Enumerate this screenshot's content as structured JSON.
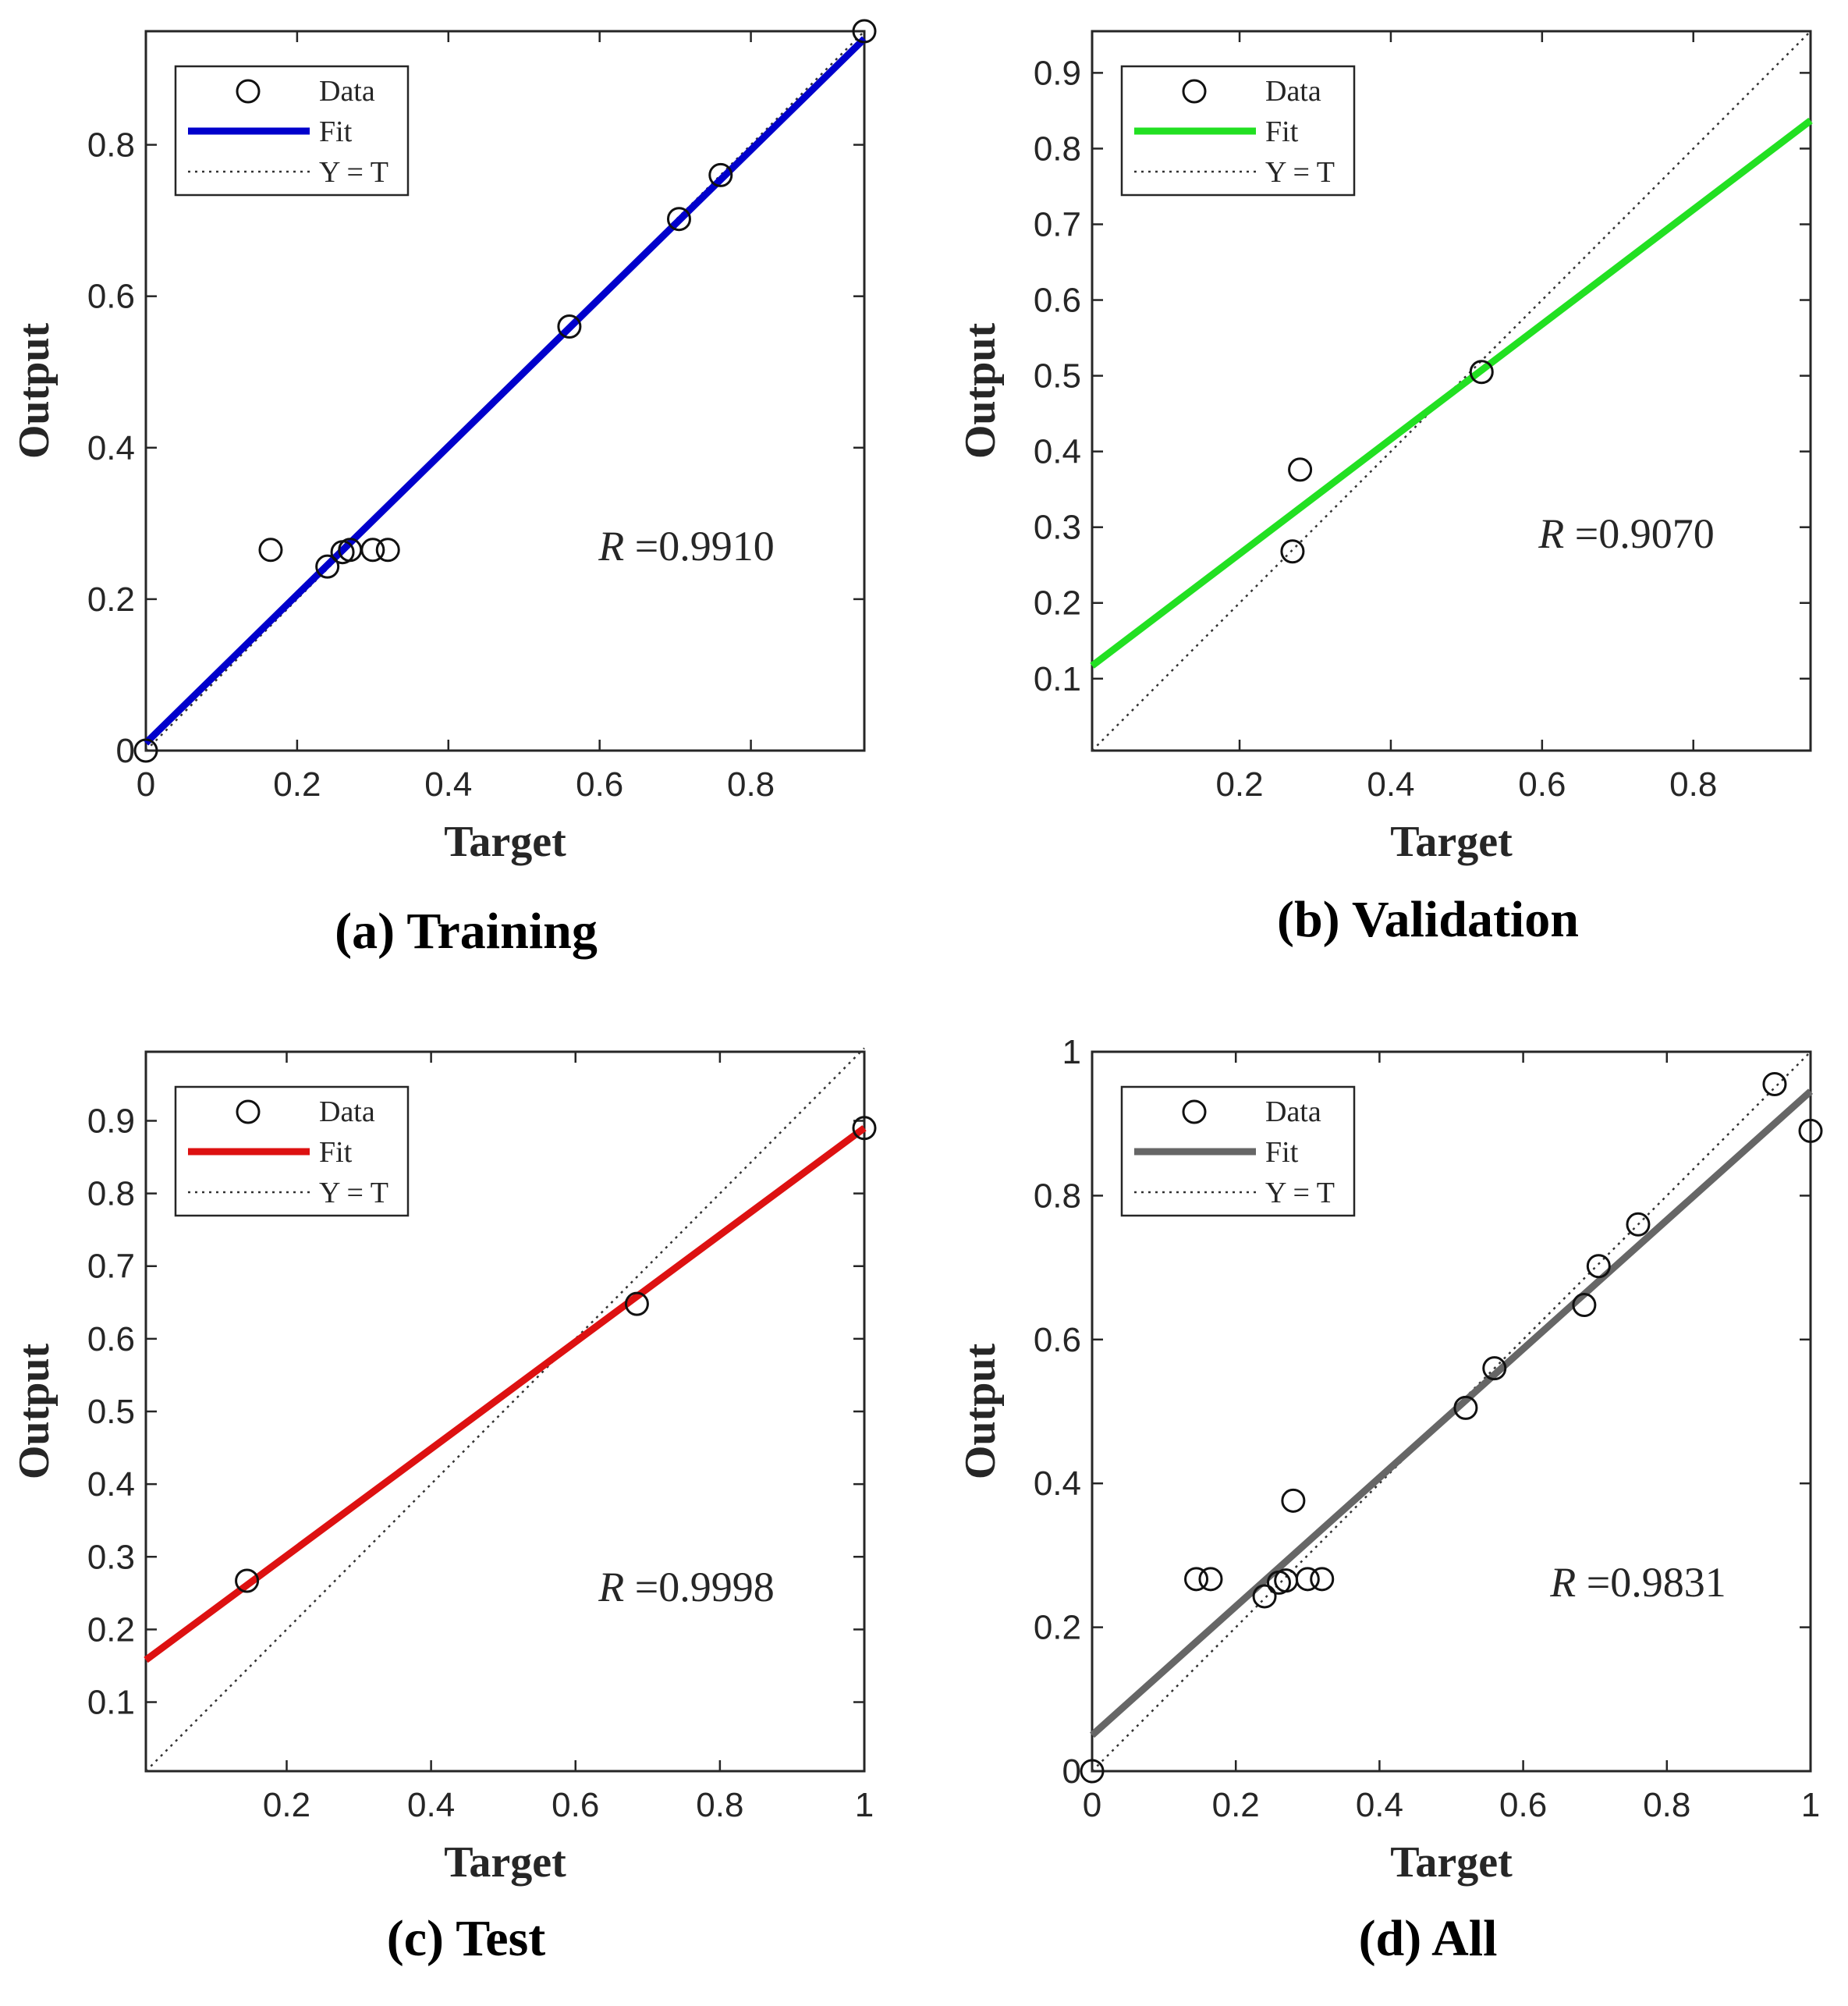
{
  "chart_data": [
    {
      "type": "scatter",
      "caption": "(a) Training",
      "xlabel": "Target",
      "ylabel": "Output",
      "xlim": [
        0,
        0.95
      ],
      "ylim": [
        0,
        0.95
      ],
      "xticks": [
        0,
        0.2,
        0.4,
        0.6,
        0.8
      ],
      "xtick_labels": [
        "0",
        "0.2",
        "0.4",
        "0.6",
        "0.8"
      ],
      "yticks": [
        0,
        0.2,
        0.4,
        0.6,
        0.8
      ],
      "ytick_labels": [
        "0",
        "0.2",
        "0.4",
        "0.6",
        "0.8"
      ],
      "fit_color": "#0000CC",
      "fit_line": [
        [
          0,
          0.01
        ],
        [
          0.95,
          0.94
        ]
      ],
      "identity_line": [
        [
          0,
          0
        ],
        [
          0.95,
          0.95
        ]
      ],
      "data_points": [
        [
          0,
          0
        ],
        [
          0.165,
          0.265
        ],
        [
          0.24,
          0.243
        ],
        [
          0.26,
          0.262
        ],
        [
          0.27,
          0.265
        ],
        [
          0.3,
          0.265
        ],
        [
          0.32,
          0.265
        ],
        [
          0.56,
          0.56
        ],
        [
          0.705,
          0.702
        ],
        [
          0.76,
          0.76
        ],
        [
          0.95,
          0.95
        ]
      ],
      "legend": [
        "Data",
        "Fit",
        "Y = T"
      ],
      "r_label": "R",
      "r_value": "=0.9910"
    },
    {
      "type": "scatter",
      "caption": "(b) Validation",
      "xlabel": "Target",
      "ylabel": "Output",
      "xlim": [
        0.005,
        0.955
      ],
      "ylim": [
        0.005,
        0.955
      ],
      "xticks": [
        0.2,
        0.4,
        0.6,
        0.8
      ],
      "xtick_labels": [
        "0.2",
        "0.4",
        "0.6",
        "0.8"
      ],
      "yticks": [
        0.1,
        0.2,
        0.3,
        0.4,
        0.5,
        0.6,
        0.7,
        0.8,
        0.9
      ],
      "ytick_labels": [
        "0.1",
        "0.2",
        "0.3",
        "0.4",
        "0.5",
        "0.6",
        "0.7",
        "0.8",
        "0.9"
      ],
      "fit_color": "#22E022",
      "fit_line": [
        [
          0.005,
          0.117
        ],
        [
          0.955,
          0.837
        ]
      ],
      "identity_line": [
        [
          0.005,
          0.005
        ],
        [
          0.955,
          0.955
        ]
      ],
      "data_points": [
        [
          0.27,
          0.268
        ],
        [
          0.28,
          0.376
        ],
        [
          0.52,
          0.505
        ]
      ],
      "legend": [
        "Data",
        "Fit",
        "Y = T"
      ],
      "r_label": "R",
      "r_value": "=0.9070"
    },
    {
      "type": "scatter",
      "caption": "(c) Test",
      "xlabel": "Target",
      "ylabel": "Output",
      "xlim": [
        0.005,
        1.0
      ],
      "ylim": [
        0.005,
        0.995
      ],
      "xticks": [
        0.2,
        0.4,
        0.6,
        0.8,
        1
      ],
      "xtick_labels": [
        "0.2",
        "0.4",
        "0.6",
        "0.8",
        "1"
      ],
      "yticks": [
        0.1,
        0.2,
        0.3,
        0.4,
        0.5,
        0.6,
        0.7,
        0.8,
        0.9
      ],
      "ytick_labels": [
        "0.1",
        "0.2",
        "0.3",
        "0.4",
        "0.5",
        "0.6",
        "0.7",
        "0.8",
        "0.9"
      ],
      "fit_color": "#DD1111",
      "fit_line": [
        [
          0.005,
          0.158
        ],
        [
          1.0,
          0.89
        ]
      ],
      "identity_line": [
        [
          0.005,
          0.005
        ],
        [
          1.0,
          1.0
        ]
      ],
      "data_points": [
        [
          0.145,
          0.267
        ],
        [
          0.685,
          0.648
        ],
        [
          1.0,
          0.89
        ]
      ],
      "legend": [
        "Data",
        "Fit",
        "Y = T"
      ],
      "r_label": "R",
      "r_value": "=0.9998"
    },
    {
      "type": "scatter",
      "caption": "(d) All",
      "xlabel": "Target",
      "ylabel": "Output",
      "xlim": [
        0,
        1
      ],
      "ylim": [
        0,
        1
      ],
      "xticks": [
        0,
        0.2,
        0.4,
        0.6,
        0.8,
        1
      ],
      "xtick_labels": [
        "0",
        "0.2",
        "0.4",
        "0.6",
        "0.8",
        "1"
      ],
      "yticks": [
        0,
        0.2,
        0.4,
        0.6,
        0.8,
        1
      ],
      "ytick_labels": [
        "0",
        "0.2",
        "0.4",
        "0.6",
        "0.8",
        "1"
      ],
      "fit_color": "#666666",
      "fit_line": [
        [
          0,
          0.05
        ],
        [
          1,
          0.945
        ]
      ],
      "identity_line": [
        [
          0,
          0
        ],
        [
          1,
          1
        ]
      ],
      "data_points": [
        [
          0,
          0
        ],
        [
          0.145,
          0.267
        ],
        [
          0.165,
          0.267
        ],
        [
          0.24,
          0.243
        ],
        [
          0.26,
          0.262
        ],
        [
          0.27,
          0.265
        ],
        [
          0.28,
          0.376
        ],
        [
          0.3,
          0.267
        ],
        [
          0.32,
          0.267
        ],
        [
          0.52,
          0.505
        ],
        [
          0.56,
          0.56
        ],
        [
          0.685,
          0.648
        ],
        [
          0.705,
          0.702
        ],
        [
          0.76,
          0.76
        ],
        [
          0.95,
          0.955
        ],
        [
          1.0,
          0.89
        ]
      ],
      "legend": [
        "Data",
        "Fit",
        "Y = T"
      ],
      "r_label": "R",
      "r_value": "=0.9831"
    }
  ]
}
